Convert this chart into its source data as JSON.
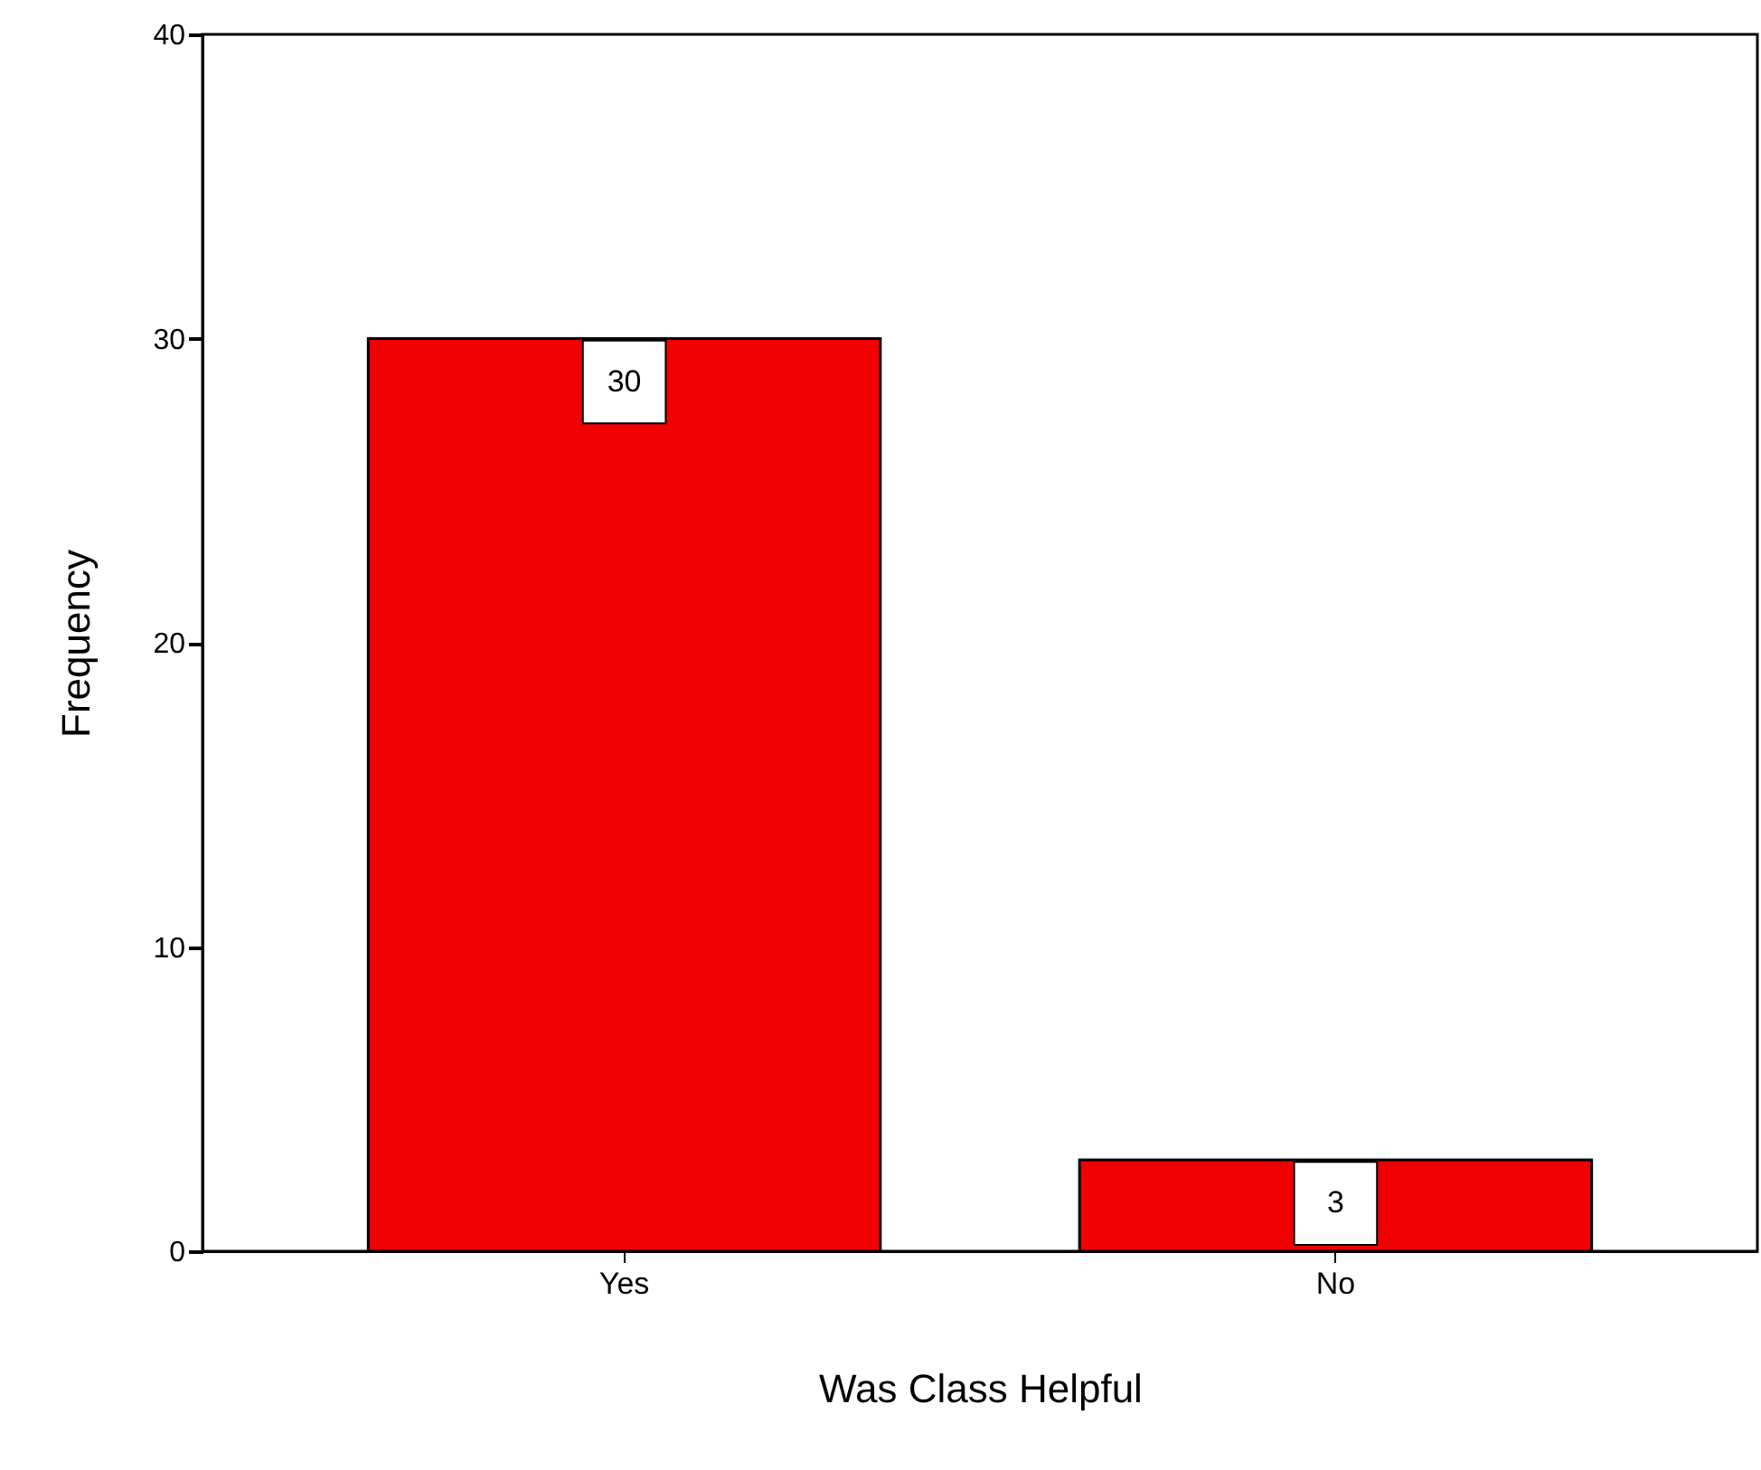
{
  "chart_data": {
    "type": "bar",
    "xlabel": "Was Class Helpful",
    "ylabel": "Frequency",
    "categories": [
      "Yes",
      "No"
    ],
    "values": [
      30,
      3
    ],
    "color": "#f00000",
    "ylim": [
      0,
      40
    ],
    "yticks": [
      0,
      10,
      20,
      30,
      40
    ],
    "data_labels": true,
    "grid": false
  }
}
